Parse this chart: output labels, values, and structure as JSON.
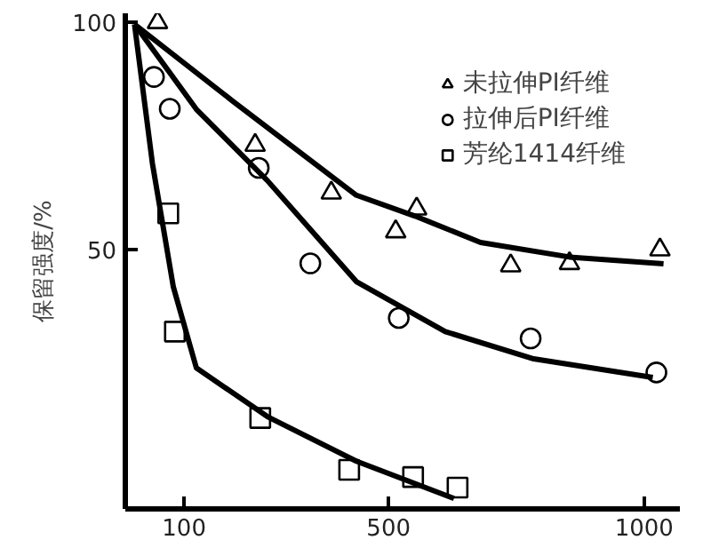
{
  "chart_data": {
    "type": "scatter",
    "ylabel": "保留强度/%",
    "xlim": [
      -15,
      1070
    ],
    "ylim": [
      -7,
      102
    ],
    "xticks": [
      100,
      500,
      1000
    ],
    "yticks": [
      50,
      100
    ],
    "grid": false,
    "legend": "top right",
    "series": [
      {
        "name": "未拉伸PI纤维",
        "color": "#000000",
        "marker": "triangle",
        "x": [
          48,
          239,
          388,
          514,
          555,
          739,
          854,
          1031
        ],
        "values": [
          100,
          73,
          62.5,
          54,
          59,
          46.5,
          47,
          50
        ]
      },
      {
        "name": "拉伸后PI纤维",
        "color": "#000000",
        "marker": "circle",
        "x": [
          41,
          72,
          246,
          347,
          520,
          778,
          1024
        ],
        "values": [
          88,
          81,
          68,
          47,
          35,
          30.5,
          23
        ]
      },
      {
        "name": "芳纶1414纤维",
        "color": "#000000",
        "marker": "square",
        "x": [
          69,
          82,
          249,
          423,
          548,
          635
        ],
        "values": [
          58,
          32,
          13,
          1.6,
          0,
          -2.3
        ]
      },
      {
        "type": "line",
        "color": "#000000",
        "x": [
          3,
          194,
          437,
          552,
          680,
          854,
          1038
        ],
        "values": [
          99.6,
          82.8,
          62,
          57.4,
          51.6,
          48.4,
          46.9
        ]
      },
      {
        "type": "line",
        "color": "#000000",
        "x": [
          3,
          124,
          263,
          437,
          611,
          784,
          1017
        ],
        "values": [
          99.6,
          80.9,
          65.2,
          43,
          32,
          26,
          21.9
        ]
      },
      {
        "type": "line",
        "color": "#000000",
        "x": [
          3,
          38,
          79,
          124,
          263,
          437,
          628
        ],
        "values": [
          99.6,
          69,
          41.8,
          24,
          13.3,
          3.5,
          -4.7
        ]
      }
    ]
  }
}
